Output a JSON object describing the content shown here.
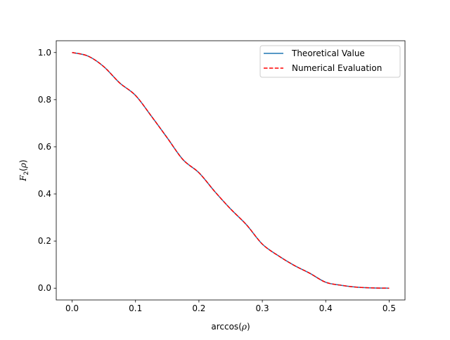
{
  "chart_data": {
    "type": "line",
    "xlabel": {
      "prefix": "arccos(",
      "var": "ρ",
      "suffix": ")"
    },
    "ylabel": {
      "var": "F",
      "sub": "2",
      "open": "(",
      "arg": "ρ",
      "close": ")"
    },
    "xlim": [
      -0.025,
      0.525
    ],
    "ylim": [
      -0.05,
      1.05
    ],
    "xticks": [
      0.0,
      0.1,
      0.2,
      0.3,
      0.4,
      0.5
    ],
    "xtick_labels": [
      "0.0",
      "0.1",
      "0.2",
      "0.3",
      "0.4",
      "0.5"
    ],
    "yticks": [
      0.0,
      0.2,
      0.4,
      0.6,
      0.8,
      1.0
    ],
    "ytick_labels": [
      "0.0",
      "0.2",
      "0.4",
      "0.6",
      "0.8",
      "1.0"
    ],
    "grid": false,
    "legend_position": "upper right",
    "x": [
      0.0,
      0.025,
      0.05,
      0.075,
      0.1,
      0.125,
      0.15,
      0.175,
      0.2,
      0.225,
      0.25,
      0.275,
      0.3,
      0.325,
      0.35,
      0.375,
      0.4,
      0.425,
      0.45,
      0.475,
      0.5
    ],
    "series": [
      {
        "name": "Theoretical Value",
        "color": "#1f77b4",
        "style": "solid",
        "values": [
          1.0,
          0.985,
          0.94,
          0.871,
          0.818,
          0.73,
          0.638,
          0.545,
          0.49,
          0.41,
          0.336,
          0.269,
          0.187,
          0.138,
          0.097,
          0.063,
          0.025,
          0.012,
          0.004,
          0.001,
          0.0
        ]
      },
      {
        "name": "Numerical Evaluation",
        "color": "#ff0000",
        "style": "dashed",
        "values": [
          1.0,
          0.985,
          0.94,
          0.871,
          0.818,
          0.73,
          0.638,
          0.545,
          0.49,
          0.41,
          0.336,
          0.269,
          0.187,
          0.138,
          0.097,
          0.063,
          0.025,
          0.012,
          0.004,
          0.001,
          0.0
        ]
      }
    ]
  }
}
